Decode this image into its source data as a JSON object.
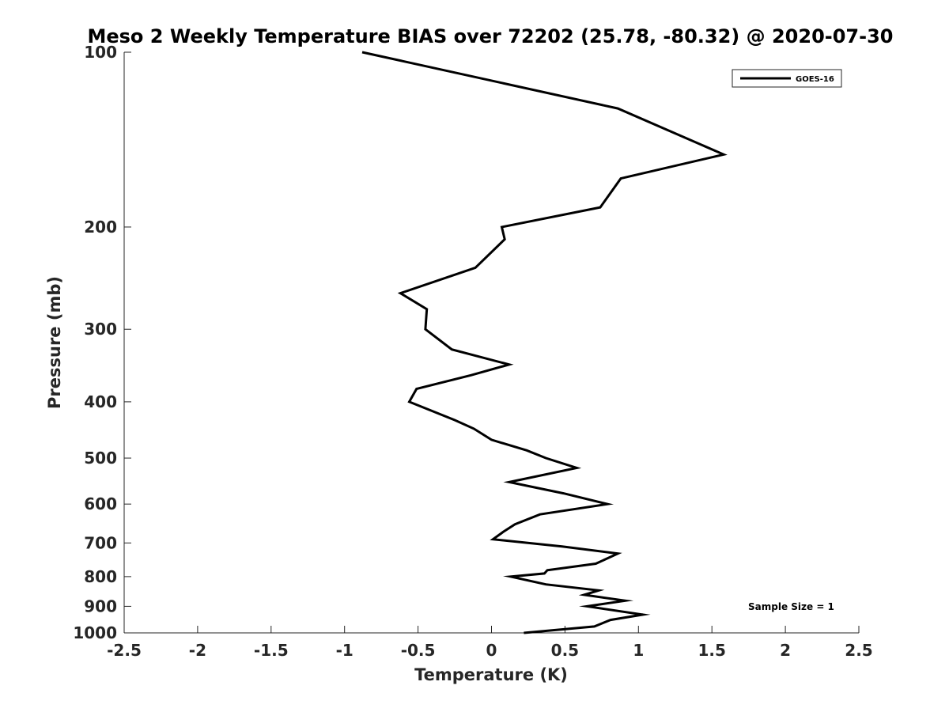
{
  "chart_data": {
    "type": "line",
    "title": "Meso 2 Weekly Temperature BIAS over 72202 (25.78, -80.32) @ 2020-07-30",
    "xlabel": "Temperature (K)",
    "ylabel": "Pressure (mb)",
    "xlim": [
      -2.5,
      2.5
    ],
    "ylim": [
      100,
      1000
    ],
    "y_scale": "log",
    "y_reversed": true,
    "x_ticks": [
      "-2.5",
      "-2",
      "-1.5",
      "-1",
      "-0.5",
      "0",
      "0.5",
      "1",
      "1.5",
      "2",
      "2.5"
    ],
    "y_ticks": [
      "100",
      "200",
      "300",
      "400",
      "500",
      "600",
      "700",
      "800",
      "900",
      "1000"
    ],
    "grid": false,
    "legend_position": "top-right",
    "series": [
      {
        "name": "GOES-16",
        "color": "#000000",
        "x": [
          -0.88,
          0.86,
          1.58,
          0.88,
          0.74,
          0.07,
          0.09,
          -0.11,
          -0.62,
          -0.44,
          -0.45,
          -0.27,
          0.12,
          -0.14,
          -0.51,
          -0.56,
          -0.25,
          -0.12,
          0.0,
          0.24,
          0.37,
          0.58,
          0.12,
          0.49,
          0.79,
          0.33,
          0.16,
          0.08,
          0.01,
          0.48,
          0.86,
          0.71,
          0.38,
          0.36,
          0.13,
          0.37,
          0.73,
          0.63,
          0.91,
          0.65,
          1.03,
          0.81,
          0.7,
          0.22
        ],
        "y": [
          100,
          125,
          150,
          165,
          185,
          200,
          210,
          235,
          260,
          277,
          300,
          325,
          345,
          360,
          380,
          400,
          430,
          445,
          465,
          485,
          500,
          520,
          550,
          575,
          600,
          625,
          650,
          670,
          690,
          710,
          730,
          760,
          780,
          790,
          800,
          825,
          845,
          860,
          880,
          900,
          930,
          950,
          975,
          1000
        ]
      }
    ],
    "annotations": [
      "Sample Size = 1"
    ]
  }
}
